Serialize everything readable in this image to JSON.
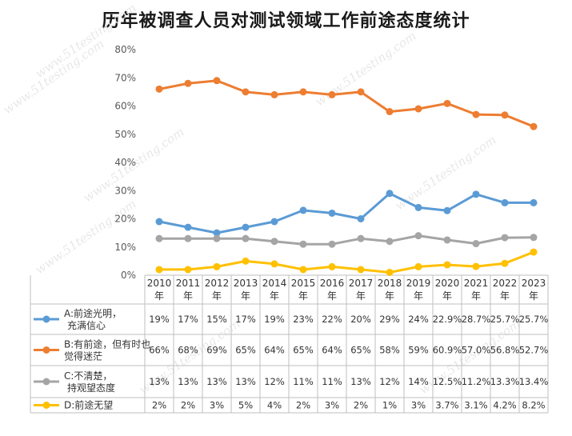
{
  "chart_data": {
    "type": "line",
    "title": "历年被调查人员对测试领域工作前途态度统计",
    "categories": [
      "2010年",
      "2011年",
      "2012年",
      "2013年",
      "2014年",
      "2015年",
      "2016年",
      "2017年",
      "2018年",
      "2019年",
      "2020年",
      "2021年",
      "2022年",
      "2023年"
    ],
    "ylim": [
      0,
      80
    ],
    "yticks": [
      "0%",
      "10%",
      "20%",
      "30%",
      "40%",
      "50%",
      "60%",
      "70%",
      "80%"
    ],
    "grid": false,
    "watermark": "www.51testing.com",
    "series": [
      {
        "name": "A:前途光明，充满信心",
        "color": "#5B9BD5",
        "values": [
          19,
          17,
          15,
          17,
          19,
          23,
          22,
          20,
          29,
          24,
          22.9,
          28.7,
          25.7,
          25.7
        ],
        "labels": [
          "19%",
          "17%",
          "15%",
          "17%",
          "19%",
          "23%",
          "22%",
          "20%",
          "29%",
          "24%",
          "22.9%",
          "28.7%",
          "25.7%",
          "25.7%"
        ]
      },
      {
        "name": "B:有前途，但有时也觉得迷茫",
        "color": "#ED7D31",
        "values": [
          66,
          68,
          69,
          65,
          64,
          65,
          64,
          65,
          58,
          59,
          60.9,
          57.0,
          56.8,
          52.7
        ],
        "labels": [
          "66%",
          "68%",
          "69%",
          "65%",
          "64%",
          "65%",
          "64%",
          "65%",
          "58%",
          "59%",
          "60.9%",
          "57.0%",
          "56.8%",
          "52.7%"
        ]
      },
      {
        "name": "C:不清楚，持观望态度",
        "color": "#A5A5A5",
        "values": [
          13,
          13,
          13,
          13,
          12,
          11,
          11,
          13,
          12,
          14,
          12.5,
          11.2,
          13.3,
          13.4
        ],
        "labels": [
          "13%",
          "13%",
          "13%",
          "13%",
          "12%",
          "11%",
          "11%",
          "13%",
          "12%",
          "14%",
          "12.5%",
          "11.2%",
          "13.3%",
          "13.4%"
        ]
      },
      {
        "name": "D:前途无望",
        "color": "#FFC000",
        "values": [
          2,
          2,
          3,
          5,
          4,
          2,
          3,
          2,
          1,
          3,
          3.7,
          3.1,
          4.2,
          8.2
        ],
        "labels": [
          "2%",
          "2%",
          "3%",
          "5%",
          "4%",
          "2%",
          "3%",
          "2%",
          "1%",
          "3%",
          "3.7%",
          "3.1%",
          "4.2%",
          "8.2%"
        ]
      }
    ]
  }
}
